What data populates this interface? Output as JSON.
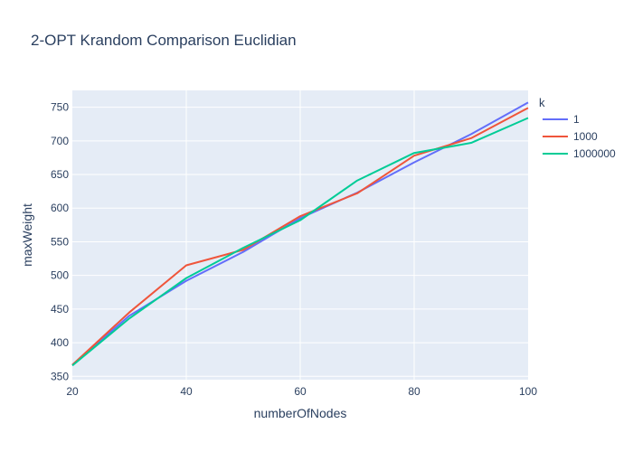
{
  "chart_data": {
    "type": "line",
    "title": "2-OPT Krandom Comparison Euclidian",
    "xlabel": "numberOfNodes",
    "ylabel": "maxWeight",
    "xlim": [
      20,
      100
    ],
    "ylim": [
      345,
      775
    ],
    "xticks": [
      20,
      40,
      60,
      80,
      100
    ],
    "yticks": [
      350,
      400,
      450,
      500,
      550,
      600,
      650,
      700,
      750
    ],
    "grid": true,
    "legend": {
      "title": "k",
      "position": "right"
    },
    "x": [
      20,
      30,
      40,
      50,
      60,
      70,
      80,
      90,
      100
    ],
    "series": [
      {
        "name": "1",
        "color": "#636efa",
        "values": [
          367,
          440,
          492,
          535,
          585,
          623,
          668,
          710,
          757
        ]
      },
      {
        "name": "1000",
        "color": "#ef553b",
        "values": [
          367,
          445,
          515,
          538,
          588,
          622,
          678,
          704,
          749
        ]
      },
      {
        "name": "1000000",
        "color": "#00cc96",
        "values": [
          366,
          436,
          496,
          541,
          582,
          641,
          682,
          697,
          734
        ]
      }
    ]
  }
}
